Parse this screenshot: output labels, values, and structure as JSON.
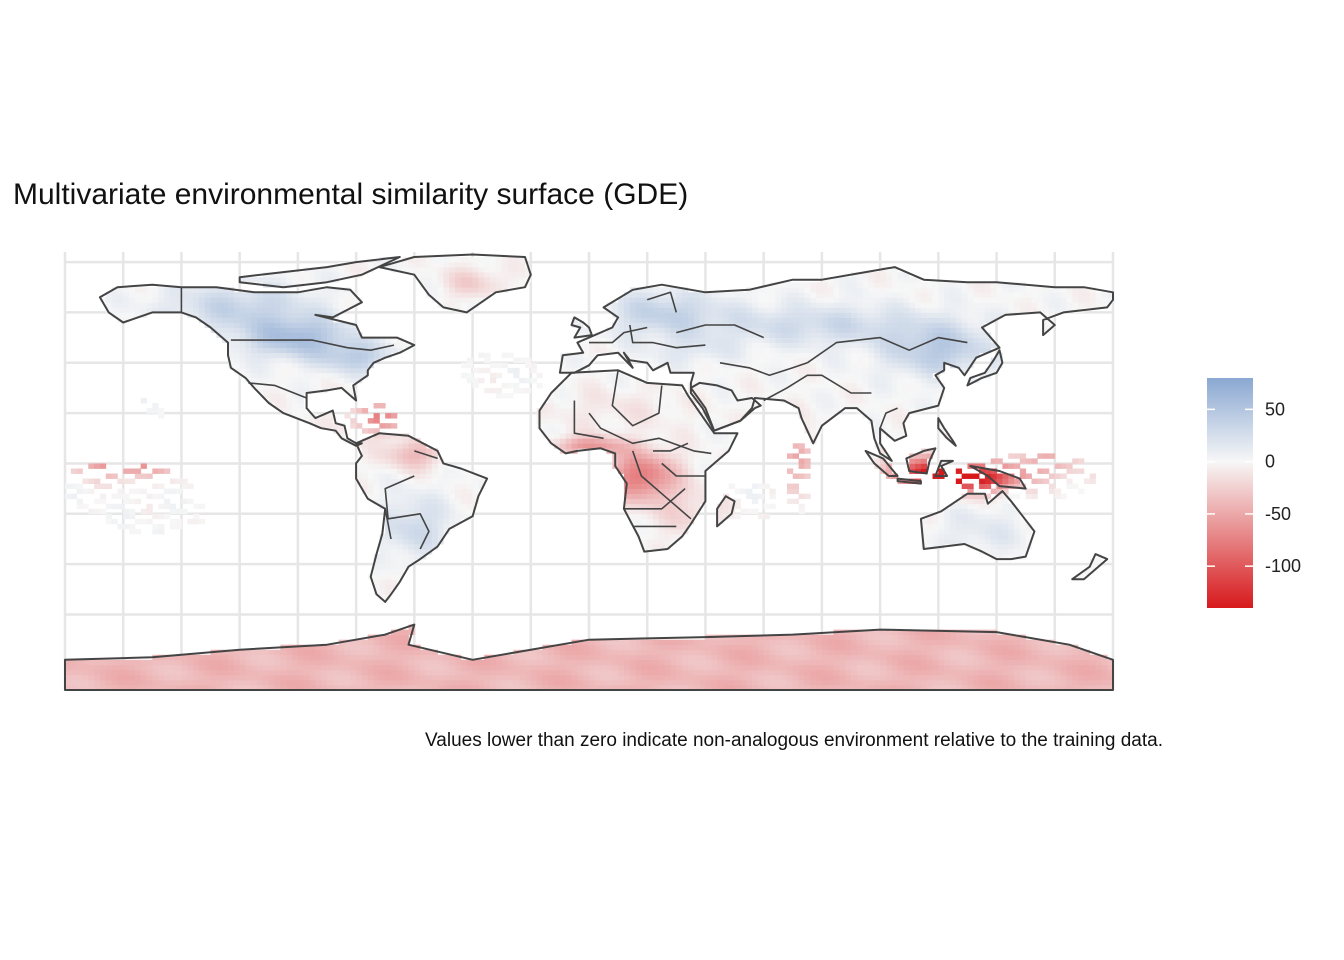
{
  "title": "Multivariate environmental similarity surface (GDE)",
  "caption": "Values lower than zero indicate non-analogous environment relative to the training data.",
  "legend": {
    "ticks": [
      50,
      0,
      -50,
      -100
    ],
    "range": [
      -140,
      80
    ],
    "colors": {
      "low": "#d7191c",
      "mid": "#f7f7f7",
      "high": "#8aa8d2"
    }
  },
  "map": {
    "background": "#ffffff",
    "grid_color": "#e6e6e6",
    "border_color": "#444444",
    "projection": "equirectangular",
    "extent": {
      "lon": [
        -180,
        180
      ],
      "lat": [
        -90,
        84
      ]
    }
  },
  "chart_data": {
    "type": "heatmap",
    "title": "Multivariate environmental similarity surface (GDE)",
    "value_range": [
      -140,
      80
    ],
    "notable_regions": [
      {
        "region": "Indonesia / Maritime Southeast Asia",
        "value": -130
      },
      {
        "region": "Central Africa (Congo basin)",
        "value": -80
      },
      {
        "region": "Caribbean",
        "value": -60
      },
      {
        "region": "Central Pacific islands",
        "value": -60
      },
      {
        "region": "Antarctica",
        "value": -45
      },
      {
        "region": "Northern Amazon",
        "value": -25
      },
      {
        "region": "Greenland (south)",
        "value": -25
      },
      {
        "region": "Sahara / Middle East",
        "value": -5
      },
      {
        "region": "Australia",
        "value": 10
      },
      {
        "region": "Central South America",
        "value": 15
      },
      {
        "region": "Eurasia (mid latitudes)",
        "value": 25
      },
      {
        "region": "North America (Great Plains / Canada)",
        "value": 45
      },
      {
        "region": "Northern Eurasia / Scandinavia",
        "value": 40
      }
    ]
  }
}
